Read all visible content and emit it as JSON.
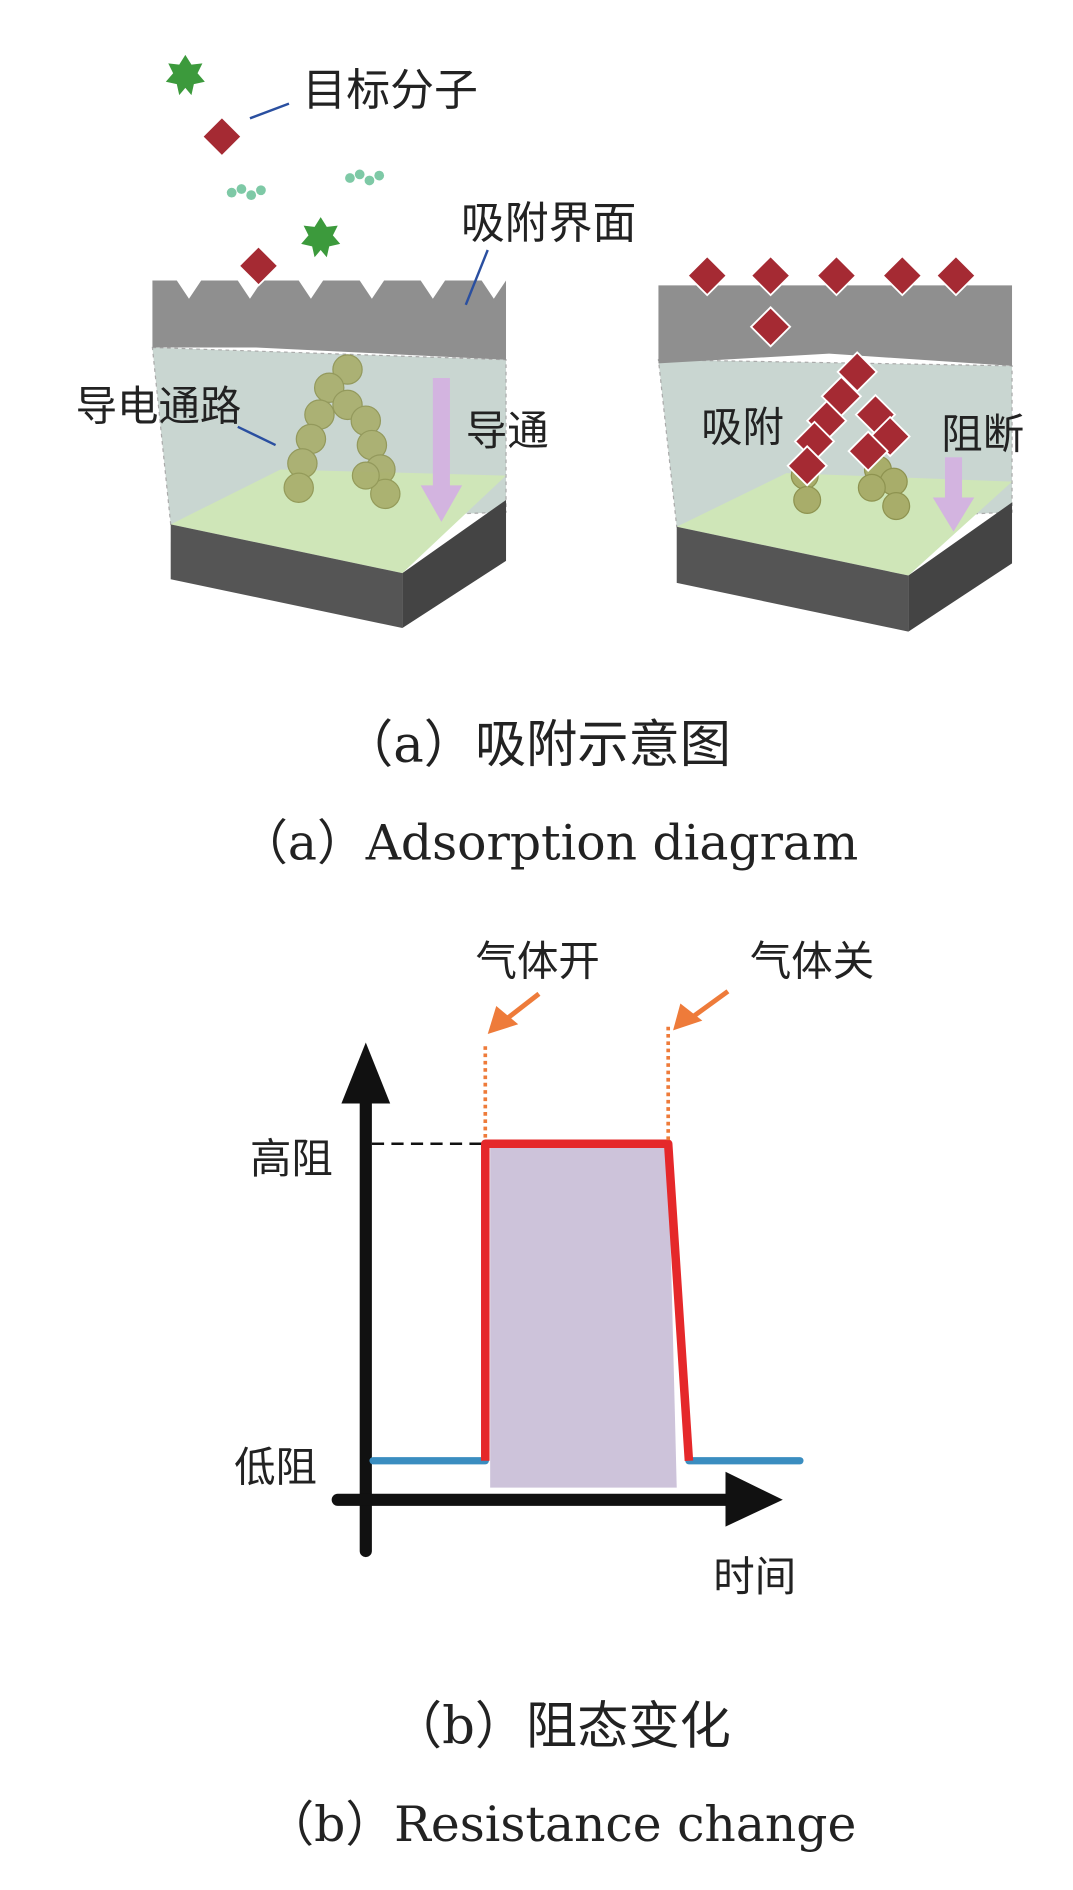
{
  "panel_a": {
    "labels": {
      "target_molecule": "目标分子",
      "adsorption_interface": "吸附界面",
      "conductive_path": "导电通路",
      "conduction": "导通",
      "adsorption": "吸附",
      "blocking": "阻断"
    },
    "caption_cn": "（a）吸附示意图",
    "caption_en": "（a）Adsorption diagram"
  },
  "panel_b": {
    "labels": {
      "gas_on": "气体开",
      "gas_off": "气体关",
      "high_resistance": "高阻",
      "low_resistance": "低阻",
      "time": "时间"
    },
    "caption_cn": "（b）阻态变化",
    "caption_en": "（b）Resistance change"
  },
  "chart_data": {
    "type": "line",
    "xlabel": "时间",
    "ylabel": "",
    "y_tick_labels": [
      "低阻",
      "高阻"
    ],
    "series": [
      {
        "color": "#e5282a",
        "segment": "response during gas exposure",
        "points": [
          [
            "gas on",
            "低阻"
          ],
          [
            "gas on",
            "高阻"
          ],
          [
            "gas off",
            "高阻"
          ],
          [
            "after gas off",
            "低阻"
          ]
        ]
      },
      {
        "color": "#3a8dc0",
        "segment": "baseline",
        "level": "低阻"
      }
    ],
    "annotations": [
      "气体开",
      "气体关"
    ],
    "shaded_region_color": "#cdc3da",
    "grid": false
  },
  "colors": {
    "diamond": "#a52a33",
    "star": "#3c9a3c",
    "gray_layer": "#8f8f8f",
    "floor": "#cfe6b8",
    "base": "#555555",
    "arrow": "#d3b4e0",
    "orange": "#ee7b3a"
  }
}
